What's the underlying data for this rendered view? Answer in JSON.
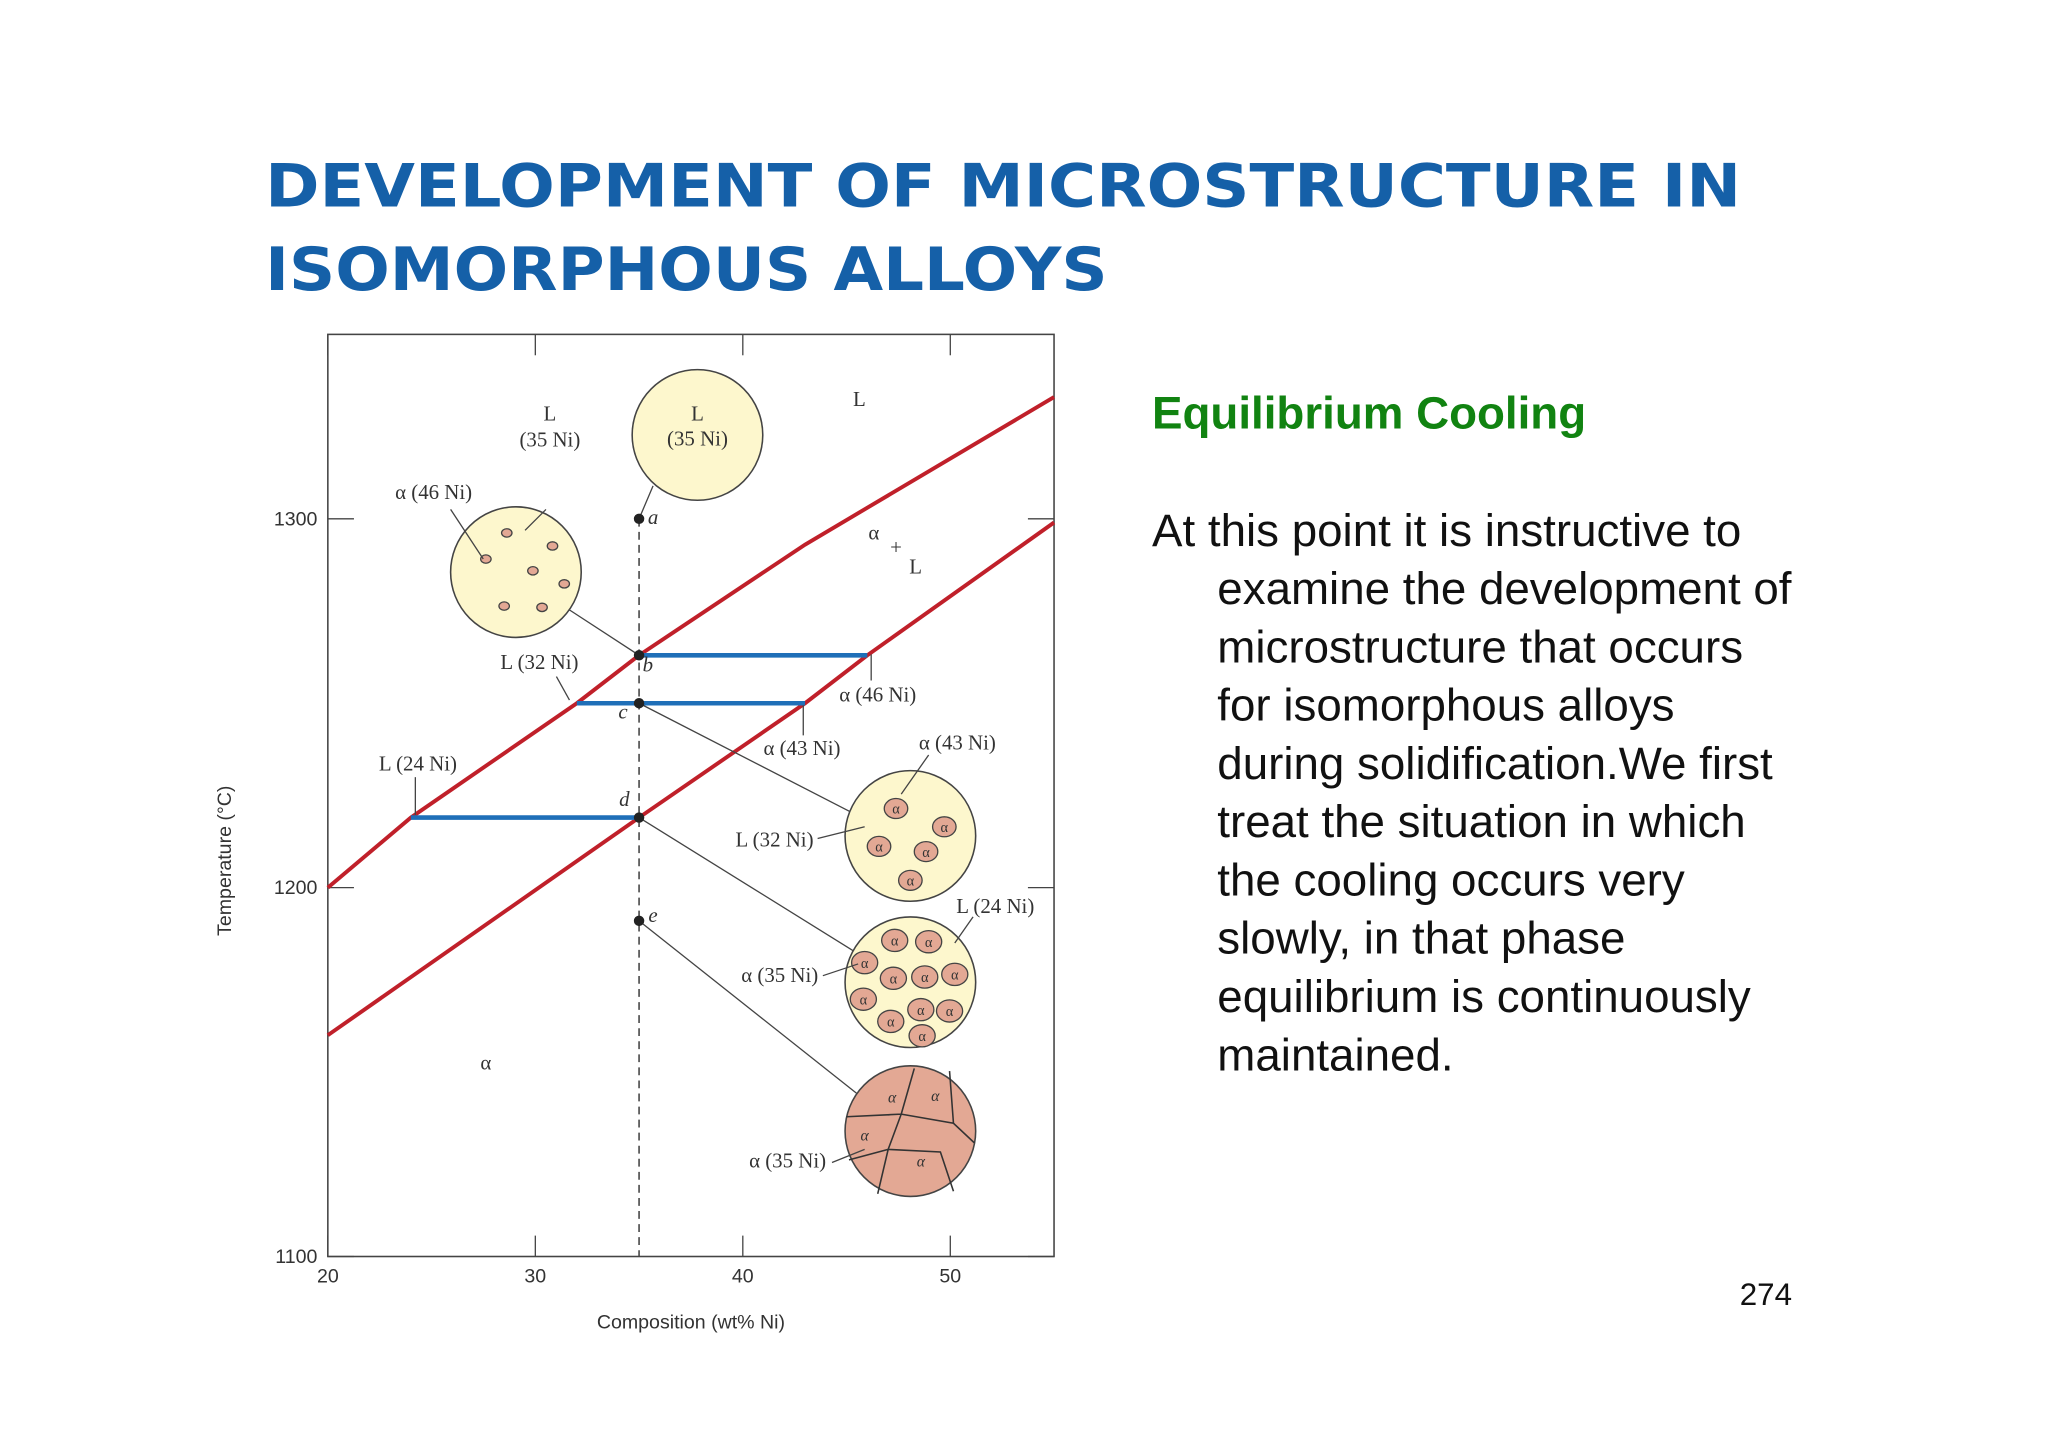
{
  "title_lines": [
    "DEVELOPMENT OF MICROSTRUCTURE IN",
    "ISOMORPHOUS ALLOYS"
  ],
  "heading": "Equilibrium Cooling",
  "body_lines": [
    "At this point it is instructive to",
    "examine the development of",
    "microstructure that occurs",
    "for isomorphous alloys",
    "during solidification.We first",
    "treat the situation in which",
    "the cooling occurs very",
    "slowly, in that phase",
    "equilibrium is continuously",
    "maintained."
  ],
  "page_number": "274",
  "chart_data": {
    "type": "line",
    "x_label": "Composition (wt% Ni)",
    "y_label": "Temperature (°C)",
    "xlim": [
      20,
      55
    ],
    "ylim": [
      1100,
      1350
    ],
    "xticks": [
      20,
      30,
      40,
      50
    ],
    "yticks": [
      1100,
      1200,
      1300
    ],
    "series": [
      {
        "color": "#c0202a",
        "x": [
          20,
          24,
          32,
          35,
          43,
          55
        ],
        "values": [
          1200,
          1219,
          1250,
          1263,
          1293,
          1333
        ]
      },
      {
        "color": "#c0202a",
        "x": [
          20,
          35,
          43,
          46,
          55
        ],
        "values": [
          1160,
          1219,
          1250,
          1263,
          1299
        ]
      }
    ],
    "tie_lines": {
      "color": "#1f6fb8",
      "y": [
        1263,
        1250,
        1219
      ],
      "x_start": [
        35,
        32,
        24
      ],
      "x_end": [
        46,
        43,
        35
      ]
    },
    "points": {
      "x": [
        35,
        35,
        35,
        35,
        35
      ],
      "y": [
        1300,
        1263,
        1250,
        1219,
        1191
      ],
      "labels": [
        "a",
        "b",
        "c",
        "d",
        "e"
      ]
    },
    "annotations": [
      "L",
      "(35 Ni)",
      "L",
      "(35 Ni)",
      "L",
      "α (46 Ni)",
      "α",
      "+",
      "L",
      "L (32 Ni)",
      "α (46 Ni)",
      "α (43 Ni)",
      "α (43 Ni)",
      "L (24 Ni)",
      "L (32 Ni)",
      "L (24 Ni)",
      "α (35 Ni)",
      "α (35 Ni)",
      "α"
    ],
    "grain_label": "α"
  }
}
